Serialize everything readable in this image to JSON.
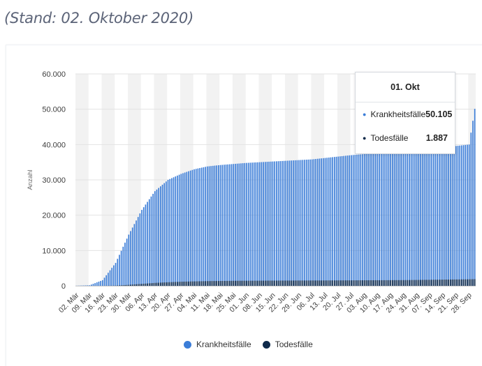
{
  "subtitle": "(Stand: 02. Oktober 2020)",
  "colors": {
    "cases": "#3b7dd8",
    "deaths": "#0f2a4a",
    "grid_band": "#f2f2f2"
  },
  "tooltip": {
    "title": "01. Okt",
    "rows": [
      {
        "label": "Krankheitsfälle",
        "value": "50.105"
      },
      {
        "label": "Todesfälle",
        "value": "1.887"
      }
    ]
  },
  "legend": [
    {
      "label": "Krankheitsfälle"
    },
    {
      "label": "Todesfälle"
    }
  ],
  "chart_data": {
    "type": "bar",
    "title": "",
    "xlabel": "",
    "ylabel": "Anzahl",
    "ylim": [
      0,
      60000
    ],
    "yticks": [
      "0",
      "10.000",
      "20.000",
      "30.000",
      "40.000",
      "50.000",
      "60.000"
    ],
    "ytick_values": [
      0,
      10000,
      20000,
      30000,
      40000,
      50000,
      60000
    ],
    "categories_start": "02. Mär",
    "categories_end": "01. Okt",
    "num_days": 214,
    "xticks": [
      "02. Mär",
      "09. Mär",
      "16. Mär",
      "23. Mär",
      "30. Mär",
      "06. Apr",
      "13. Apr",
      "20. Apr",
      "27. Apr",
      "04. Mai",
      "11. Mai",
      "18. Mai",
      "25. Mai",
      "01. Jun",
      "08. Jun",
      "15. Jun",
      "22. Jun",
      "29. Jun",
      "06. Jul",
      "13. Jul",
      "20. Jul",
      "27. Jul",
      "03. Aug",
      "10. Aug",
      "17. Aug",
      "24. Aug",
      "31. Aug",
      "07. Sep",
      "14. Sep",
      "21. Sep",
      "28. Sep"
    ],
    "series": [
      {
        "name": "Krankheitsfälle",
        "anchors": [
          [
            0,
            30
          ],
          [
            7,
            150
          ],
          [
            14,
            1600
          ],
          [
            21,
            6500
          ],
          [
            28,
            14500
          ],
          [
            35,
            21500
          ],
          [
            42,
            26800
          ],
          [
            49,
            30000
          ],
          [
            56,
            31700
          ],
          [
            63,
            33000
          ],
          [
            70,
            33800
          ],
          [
            77,
            34200
          ],
          [
            84,
            34500
          ],
          [
            91,
            34800
          ],
          [
            98,
            35000
          ],
          [
            105,
            35200
          ],
          [
            112,
            35400
          ],
          [
            119,
            35600
          ],
          [
            126,
            35800
          ],
          [
            133,
            36200
          ],
          [
            140,
            36600
          ],
          [
            147,
            37000
          ],
          [
            154,
            37300
          ],
          [
            161,
            37600
          ],
          [
            168,
            37900
          ],
          [
            175,
            38200
          ],
          [
            182,
            38500
          ],
          [
            189,
            38800
          ],
          [
            196,
            39200
          ],
          [
            203,
            39600
          ],
          [
            210,
            40000
          ],
          [
            213,
            50105
          ]
        ]
      },
      {
        "name": "Todesfälle",
        "anchors": [
          [
            0,
            0
          ],
          [
            14,
            10
          ],
          [
            21,
            60
          ],
          [
            28,
            280
          ],
          [
            35,
            560
          ],
          [
            42,
            830
          ],
          [
            49,
            1020
          ],
          [
            56,
            1160
          ],
          [
            63,
            1260
          ],
          [
            70,
            1340
          ],
          [
            84,
            1420
          ],
          [
            105,
            1480
          ],
          [
            140,
            1540
          ],
          [
            175,
            1620
          ],
          [
            210,
            1850
          ],
          [
            213,
            1887
          ]
        ]
      }
    ]
  }
}
